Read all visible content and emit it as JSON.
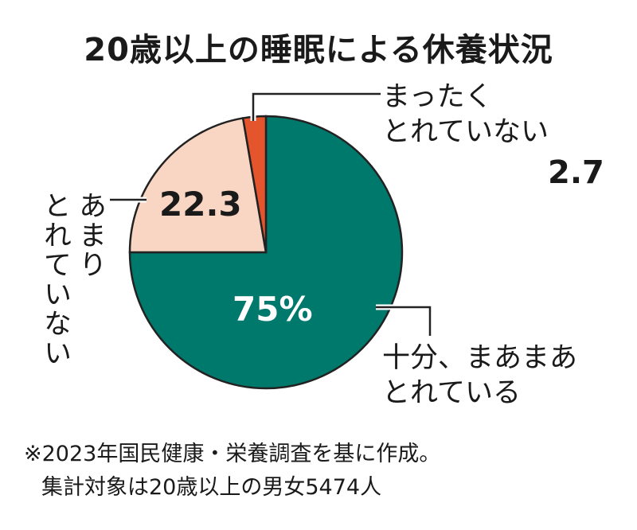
{
  "title": "20歳以上の睡眠による休養状況",
  "chart_data": {
    "type": "pie",
    "title": "20歳以上の睡眠による休養状況",
    "slices": [
      {
        "label": "十分、まあまあとれている",
        "label_lines": [
          "十分、まあまあ",
          "とれている"
        ],
        "value": 75,
        "display": "75%",
        "color": "#00796d"
      },
      {
        "label": "あまりとれていない",
        "label_lines": [
          "あまり",
          "とれていない"
        ],
        "value": 22.3,
        "display": "22.3",
        "color": "#f9d6c4"
      },
      {
        "label": "まったくとれていない",
        "label_lines": [
          "まったく",
          "とれていない"
        ],
        "value": 2.7,
        "display": "2.7",
        "color": "#e4552d"
      }
    ],
    "start_angle_deg": 0,
    "direction": "clockwise"
  },
  "notes": [
    "※2023年国民健康・栄養調査を基に作成。",
    "集計対象は20歳以上の男女5474人"
  ]
}
